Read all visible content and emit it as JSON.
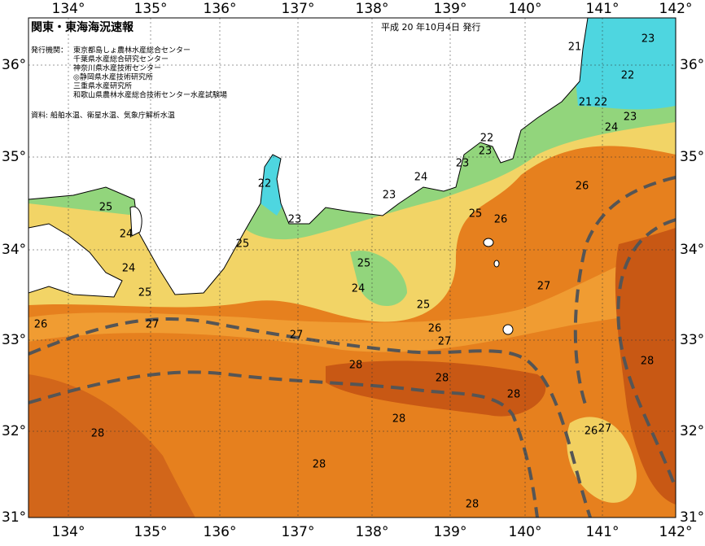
{
  "header": {
    "title": "関東・東海海況速報",
    "date": "平成 20 年10月4日 発行",
    "issuers_label": "発行機関：",
    "issuers": [
      "東京都島しょ農林水産総合センター",
      "千葉県水産総合研究センター",
      "神奈川県水産技術センター",
      "◎静岡県水産技術研究所",
      "三重県水産研究所",
      "和歌山県農林水産総合技術センター水産試験場"
    ],
    "source": "資料: 船舶水温、衛星水温、気象庁解析水温"
  },
  "map": {
    "lon_labels": [
      "134°",
      "135°",
      "136°",
      "137°",
      "138°",
      "139°",
      "140°",
      "141°",
      "142°"
    ],
    "lat_labels": [
      "36°",
      "35°",
      "34°",
      "33°",
      "32°",
      "31°"
    ],
    "contour_labels": [
      "25",
      "24",
      "24",
      "25",
      "25",
      "22",
      "23",
      "23",
      "24",
      "23",
      "22",
      "23",
      "25",
      "26",
      "21",
      "23",
      "22",
      "21",
      "22",
      "23",
      "24",
      "26",
      "25",
      "24",
      "25",
      "26",
      "27",
      "27",
      "26",
      "27",
      "27",
      "28",
      "28",
      "28",
      "28",
      "28",
      "28",
      "28",
      "28",
      "26",
      "27"
    ]
  }
}
